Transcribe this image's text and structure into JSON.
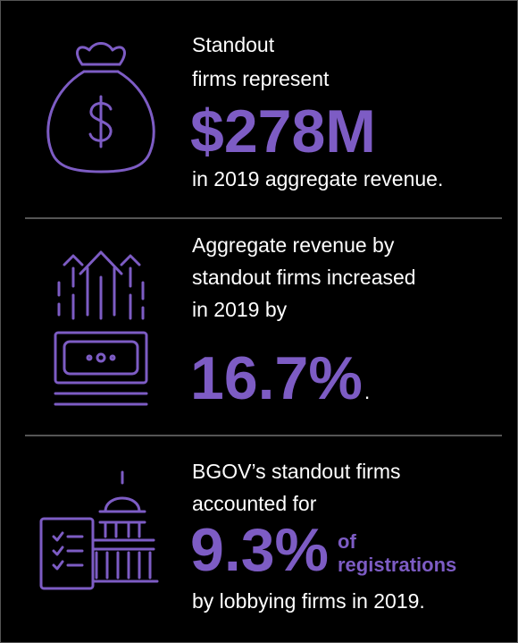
{
  "items": [
    {
      "lines": [
        "Standout",
        "firms represent"
      ],
      "figure": "$278M",
      "after": [
        "in 2019 aggregate revenue."
      ]
    },
    {
      "lines": [
        "Aggregate revenue by",
        "standout firms increased",
        "in 2019 by"
      ],
      "figure": "16.7%",
      "suffix": ".",
      "after": []
    },
    {
      "lines": [
        "BGOV’s standout firms",
        "accounted for"
      ],
      "figure": "9.3%",
      "note": [
        "of",
        "registrations"
      ],
      "after": [
        "by lobbying firms in 2019."
      ]
    }
  ]
}
